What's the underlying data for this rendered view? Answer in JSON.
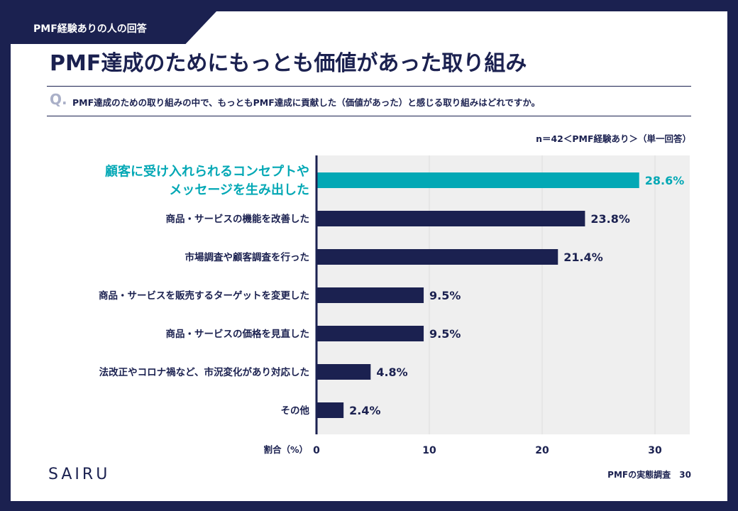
{
  "header": {
    "tag": "PMF経験ありの人の回答",
    "title": "PMF達成のためにもっとも価値があった取り組み",
    "q_mark": "Q.",
    "question": "PMF達成のための取り組みの中で、もっともPMF達成に貢献した（価値があった）と感じる取り組みはどれですか。",
    "sample_note": "n＝42＜PMF経験あり＞（単一回答）"
  },
  "footer": {
    "logo": "SAIRU",
    "report_name": "PMFの実態調査",
    "page": "30"
  },
  "colors": {
    "navy": "#1b2150",
    "highlight": "#03a8b5",
    "plot_bg": "#efefef",
    "grid": "#dcdcdc"
  },
  "chart_data": {
    "type": "bar",
    "orientation": "horizontal",
    "categories": [
      [
        "顧客に受け入れられるコンセプトや",
        "メッセージを生み出した"
      ],
      [
        "商品・サービスの機能を改善した"
      ],
      [
        "市場調査や顧客調査を行った"
      ],
      [
        "商品・サービスを販売するターゲットを変更した"
      ],
      [
        "商品・サービスの価格を見直した"
      ],
      [
        "法改正やコロナ禍など、市況変化があり対応した"
      ],
      [
        "その他"
      ]
    ],
    "values": [
      28.6,
      23.8,
      21.4,
      9.5,
      9.5,
      4.8,
      2.4
    ],
    "value_labels": [
      "28.6%",
      "23.8%",
      "21.4%",
      "9.5%",
      "9.5%",
      "4.8%",
      "2.4%"
    ],
    "highlight_index": 0,
    "xlabel": "割合（%）",
    "xticks": [
      0,
      10,
      20,
      30
    ],
    "xlim": [
      0,
      33
    ],
    "grid": true
  }
}
